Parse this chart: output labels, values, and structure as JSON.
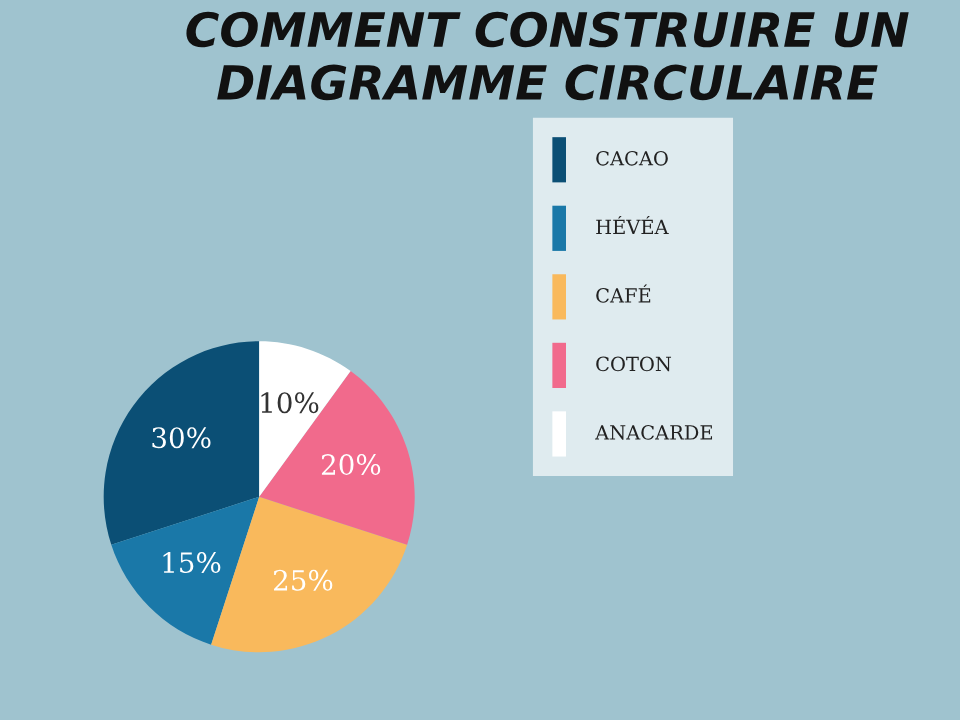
{
  "chart_data": {
    "type": "pie",
    "title": "COMMENT CONSTRUIRE UN DIAGRAMME CIRCULAIRE",
    "categories": [
      "CACAO",
      "HÉVÉA",
      "CAFÉ",
      "COTON",
      "ANACARDE"
    ],
    "values": [
      30,
      15,
      25,
      20,
      10
    ],
    "value_labels": [
      "30%",
      "15%",
      "25%",
      "20%",
      "10%"
    ],
    "colors": [
      "#0b4f75",
      "#1a78a8",
      "#f9b95c",
      "#f16a8c",
      "#ffffff"
    ],
    "legend": "right"
  }
}
